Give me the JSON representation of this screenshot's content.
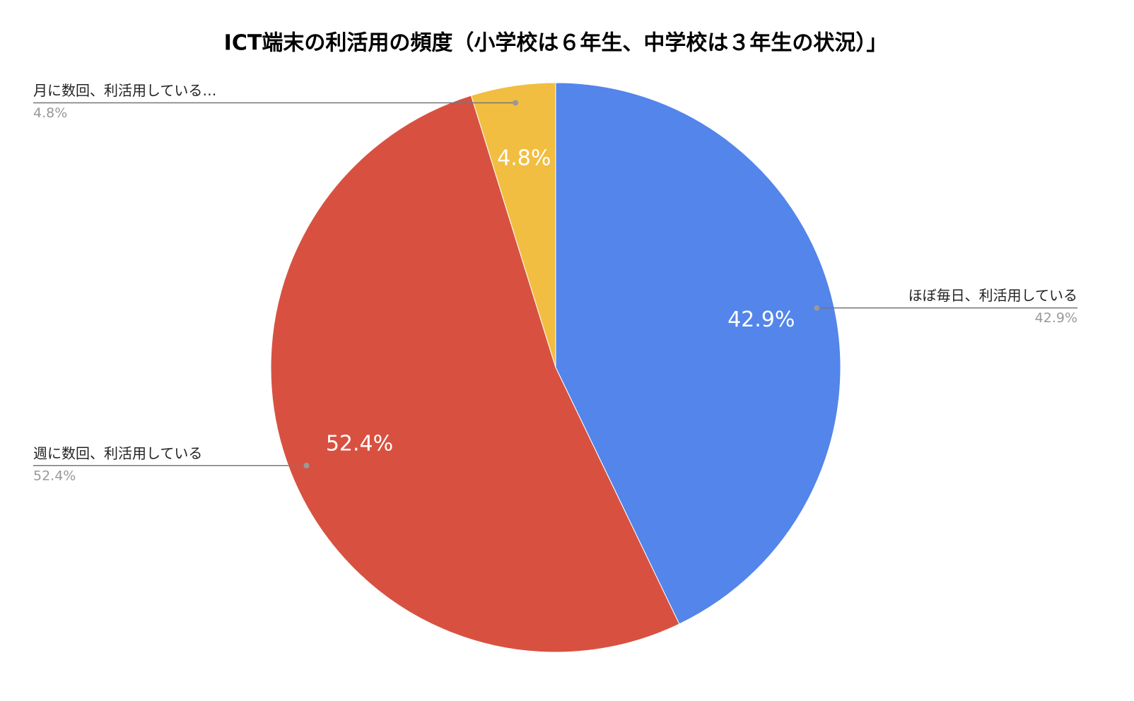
{
  "chart_data": {
    "type": "pie",
    "title": "ICT端末の利活用の頻度（小学校は６年生、中学校は３年生の状況）」",
    "categories": [
      "ほぼ毎日、利活用している",
      "週に数回、利活用している",
      "月に数回、利活用している…"
    ],
    "values": [
      42.9,
      52.4,
      4.8
    ],
    "value_labels": [
      "42.9%",
      "52.4%",
      "4.8%"
    ],
    "colors": [
      "#5385ea",
      "#d85140",
      "#f1be41"
    ]
  }
}
